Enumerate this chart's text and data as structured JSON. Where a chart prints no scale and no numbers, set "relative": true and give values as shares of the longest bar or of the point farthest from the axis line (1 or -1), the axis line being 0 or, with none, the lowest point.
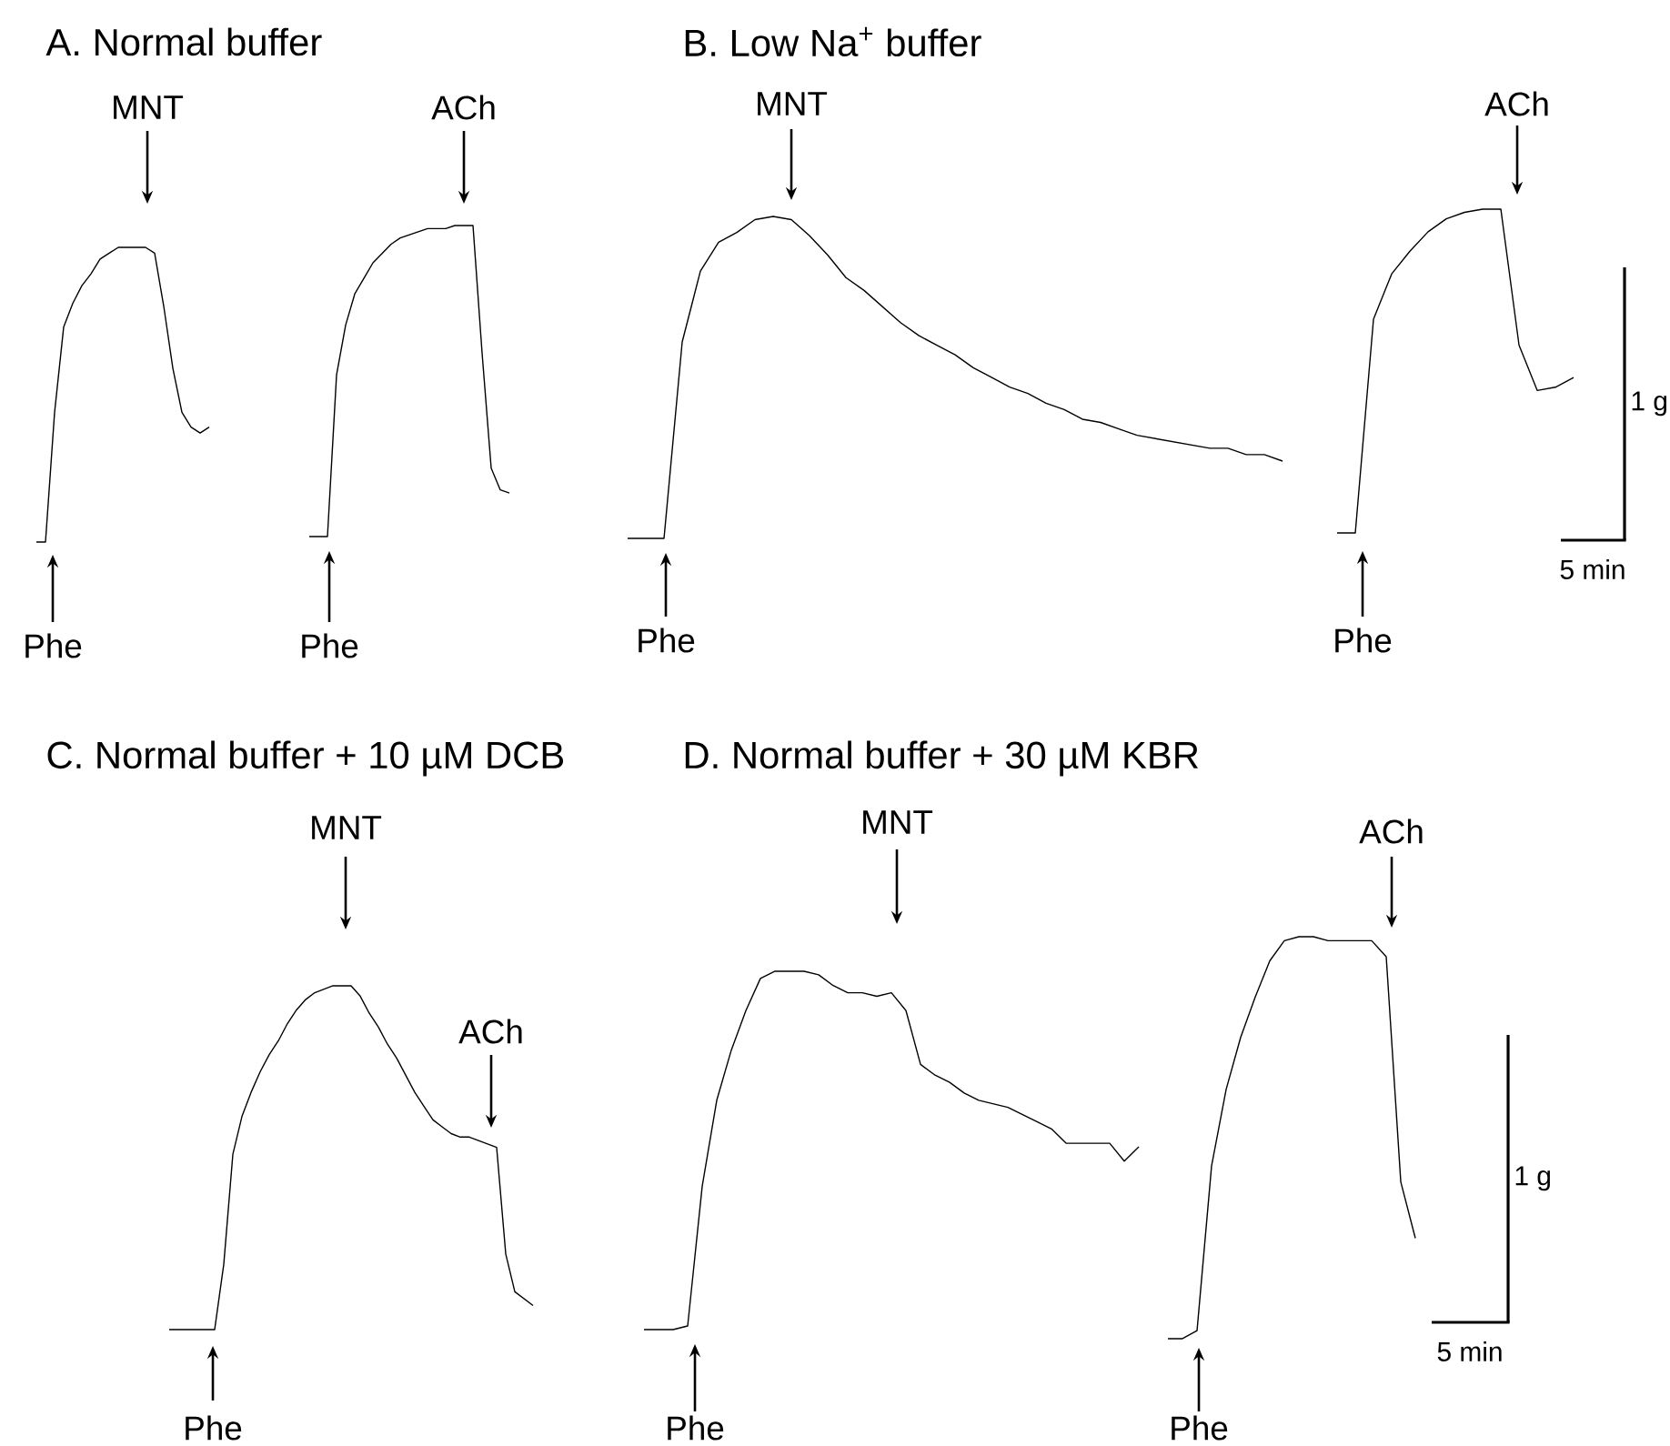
{
  "chart_data": [
    {
      "type": "line",
      "title": "A. Normal buffer",
      "relative": true,
      "categories": [
        null,
        null,
        null,
        null,
        null,
        null,
        null,
        null,
        null,
        null,
        null,
        null,
        null,
        null,
        null,
        null,
        null,
        null,
        null,
        null
      ],
      "series": [
        {
          "color": "#000000",
          "values": [
            0,
            0,
            0.44,
            0.73,
            0.81,
            0.87,
            0.91,
            0.96,
            0.98,
            1,
            1,
            1,
            1,
            0.98,
            0.8,
            0.59,
            0.44,
            0.39,
            0.37,
            0.39
          ]
        }
      ],
      "annotations": [
        "MNT",
        "Phe"
      ]
    },
    {
      "type": "line",
      "relative": true,
      "categories": [
        null,
        null,
        null,
        null,
        null,
        null,
        null,
        null,
        null,
        null,
        null,
        null,
        null,
        null,
        null,
        null,
        null,
        null,
        null,
        null,
        null,
        null,
        null
      ],
      "series": [
        {
          "color": "#000000",
          "values": [
            0,
            0,
            0,
            0.52,
            0.68,
            0.78,
            0.83,
            0.88,
            0.91,
            0.94,
            0.96,
            0.97,
            0.98,
            0.99,
            0.99,
            0.99,
            1,
            1,
            1,
            0.59,
            0.22,
            0.15,
            0.14
          ]
        }
      ],
      "annotations": [
        "ACh",
        "Phe"
      ]
    },
    {
      "type": "line",
      "title": "B. Low Na$^{+}$ buffer",
      "relative": true,
      "categories": [
        null,
        null,
        null,
        null,
        null,
        null,
        null,
        null,
        null,
        null,
        null,
        null,
        null,
        null,
        null,
        null,
        null,
        null,
        null,
        null,
        null,
        null,
        null,
        null,
        null,
        null,
        null,
        null,
        null,
        null,
        null,
        null,
        null,
        null,
        null,
        null,
        null
      ],
      "series": [
        {
          "color": "#000000",
          "values": [
            0,
            0,
            0,
            0.61,
            0.83,
            0.92,
            0.95,
            0.99,
            1,
            0.99,
            0.94,
            0.88,
            0.81,
            0.77,
            0.72,
            0.67,
            0.63,
            0.6,
            0.57,
            0.53,
            0.5,
            0.47,
            0.45,
            0.42,
            0.4,
            0.37,
            0.36,
            0.34,
            0.32,
            0.31,
            0.3,
            0.29,
            0.28,
            0.28,
            0.26,
            0.26,
            0.24
          ]
        }
      ],
      "annotations": [
        "MNT",
        "Phe"
      ]
    },
    {
      "type": "line",
      "relative": true,
      "categories": [
        null,
        null,
        null,
        null,
        null,
        null,
        null,
        null,
        null,
        null,
        null,
        null,
        null,
        null
      ],
      "series": [
        {
          "color": "#000000",
          "values": [
            0,
            0,
            0.66,
            0.8,
            0.87,
            0.93,
            0.97,
            0.99,
            1,
            1,
            0.58,
            0.44,
            0.45,
            0.48
          ]
        }
      ],
      "annotations": [
        "ACh",
        "Phe",
        "1 g",
        "5 min"
      ]
    },
    {
      "type": "line",
      "title": "C. Normal buffer + 10 µM DCB",
      "relative": true,
      "categories": [
        null,
        null,
        null,
        null,
        null,
        null,
        null,
        null,
        null,
        null,
        null,
        null,
        null,
        null,
        null,
        null,
        null,
        null,
        null,
        null,
        null,
        null,
        null,
        null,
        null,
        null,
        null,
        null,
        null,
        null,
        null,
        null,
        null,
        null,
        null,
        null,
        null,
        null,
        null,
        null,
        null
      ],
      "series": [
        {
          "color": "#000000",
          "values": [
            0,
            0,
            0,
            0,
            0,
            0,
            0.19,
            0.51,
            0.62,
            0.69,
            0.75,
            0.8,
            0.84,
            0.89,
            0.93,
            0.96,
            0.98,
            0.99,
            1,
            1,
            1,
            0.97,
            0.92,
            0.88,
            0.83,
            0.79,
            0.74,
            0.69,
            0.65,
            0.61,
            0.59,
            0.57,
            0.56,
            0.56,
            0.55,
            0.54,
            0.53,
            0.22,
            0.11,
            0.09,
            0.07
          ]
        }
      ],
      "annotations": [
        "MNT",
        "ACh",
        "Phe"
      ]
    },
    {
      "type": "line",
      "title": "D. Normal buffer + 30 µM KBR",
      "relative": true,
      "categories": [
        null,
        null,
        null,
        null,
        null,
        null,
        null,
        null,
        null,
        null,
        null,
        null,
        null,
        null,
        null,
        null,
        null,
        null,
        null,
        null,
        null,
        null,
        null,
        null,
        null,
        null,
        null,
        null,
        null,
        null,
        null,
        null,
        null,
        null,
        null
      ],
      "series": [
        {
          "color": "#000000",
          "values": [
            0,
            0,
            0,
            0.01,
            0.4,
            0.64,
            0.78,
            0.89,
            0.98,
            1,
            1,
            1,
            0.99,
            0.96,
            0.94,
            0.94,
            0.93,
            0.94,
            0.89,
            0.74,
            0.71,
            0.69,
            0.66,
            0.64,
            0.63,
            0.62,
            0.6,
            0.58,
            0.56,
            0.52,
            0.52,
            0.52,
            0.52,
            0.47,
            0.51
          ]
        }
      ],
      "annotations": [
        "MNT",
        "Phe"
      ]
    },
    {
      "type": "line",
      "relative": true,
      "categories": [
        null,
        null,
        null,
        null,
        null,
        null,
        null,
        null,
        null,
        null,
        null,
        null,
        null,
        null,
        null,
        null,
        null,
        null
      ],
      "series": [
        {
          "color": "#000000",
          "values": [
            0,
            0,
            0.02,
            0.43,
            0.62,
            0.75,
            0.85,
            0.94,
            0.99,
            1,
            1,
            0.99,
            0.99,
            0.99,
            0.99,
            0.95,
            0.39,
            0.25
          ]
        }
      ],
      "annotations": [
        "ACh",
        "Phe",
        "1 g",
        "5 min"
      ]
    }
  ]
}
